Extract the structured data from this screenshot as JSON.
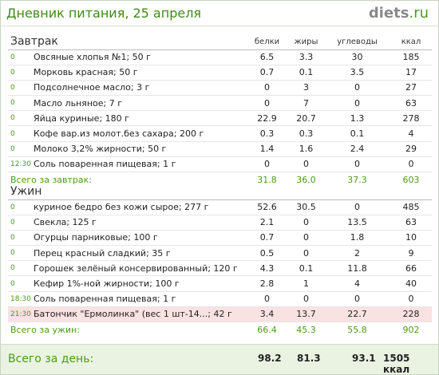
{
  "header": {
    "title": "Дневник питания, 25 апреля",
    "logo_main": "diets",
    "logo_tld": ".ru"
  },
  "columns": {
    "protein": "белки",
    "fat": "жиры",
    "carbs": "углеводы",
    "kcal": "ккал"
  },
  "breakfast": {
    "title": "Завтрак",
    "rows": [
      {
        "time": "0",
        "name": "Овсяные хлопья №1; 50 г",
        "protein": "6.5",
        "fat": "3.3",
        "carbs": "30",
        "kcal": "185"
      },
      {
        "time": "0",
        "name": "Морковь красная; 50 г",
        "protein": "0.7",
        "fat": "0.1",
        "carbs": "3.5",
        "kcal": "17"
      },
      {
        "time": "0",
        "name": "Подсолнечное масло; 3 г",
        "protein": "0",
        "fat": "3",
        "carbs": "0",
        "kcal": "27"
      },
      {
        "time": "0",
        "name": "Масло льняное; 7 г",
        "protein": "0",
        "fat": "7",
        "carbs": "0",
        "kcal": "63"
      },
      {
        "time": "0",
        "name": "Яйца куриные; 180 г",
        "protein": "22.9",
        "fat": "20.7",
        "carbs": "1.3",
        "kcal": "278"
      },
      {
        "time": "0",
        "name": "Кофе вар.из молот.без сахара; 200 г",
        "protein": "0.3",
        "fat": "0.3",
        "carbs": "0.1",
        "kcal": "4"
      },
      {
        "time": "0",
        "name": "Молоко 3,2% жирности; 50 г",
        "protein": "1.4",
        "fat": "1.6",
        "carbs": "2.4",
        "kcal": "29"
      },
      {
        "time": "12:30",
        "name": "Соль поваренная пищевая; 1 г",
        "protein": "0",
        "fat": "0",
        "carbs": "0",
        "kcal": "0"
      }
    ],
    "total": {
      "label": "Всего за завтрак:",
      "protein": "31.8",
      "fat": "36.0",
      "carbs": "37.3",
      "kcal": "603"
    }
  },
  "dinner": {
    "title": "Ужин",
    "rows": [
      {
        "time": "0",
        "name": "куриное бедро без кожи сырое; 277 г",
        "protein": "52.6",
        "fat": "30.5",
        "carbs": "0",
        "kcal": "485"
      },
      {
        "time": "0",
        "name": "Свекла; 125 г",
        "protein": "2.1",
        "fat": "0",
        "carbs": "13.5",
        "kcal": "63"
      },
      {
        "time": "0",
        "name": "Огурцы парниковые; 100 г",
        "protein": "0.7",
        "fat": "0",
        "carbs": "1.8",
        "kcal": "10"
      },
      {
        "time": "0",
        "name": "Перец красный сладкий; 35 г",
        "protein": "0.5",
        "fat": "0",
        "carbs": "2",
        "kcal": "9"
      },
      {
        "time": "0",
        "name": "Горошек зелёный консервированный; 120 г",
        "protein": "4.3",
        "fat": "0.1",
        "carbs": "11.8",
        "kcal": "66"
      },
      {
        "time": "0",
        "name": "Кефир 1%-ной жирности; 100 г",
        "protein": "2.8",
        "fat": "1",
        "carbs": "4",
        "kcal": "40"
      },
      {
        "time": "18:30",
        "name": "Соль поваренная пищевая; 1 г",
        "protein": "0",
        "fat": "0",
        "carbs": "0",
        "kcal": "0"
      },
      {
        "time": "21:30",
        "name": "Батончик \"Ермолинка\" (вес 1 шт-14...; 42 г",
        "protein": "3.4",
        "fat": "13.7",
        "carbs": "22.7",
        "kcal": "228",
        "highlight": true
      }
    ],
    "total": {
      "label": "Всего за ужин:",
      "protein": "66.4",
      "fat": "45.3",
      "carbs": "55.8",
      "kcal": "902"
    }
  },
  "day_total": {
    "label": "Всего за день:",
    "protein": "98.2",
    "fat": "81.3",
    "carbs": "93.1",
    "kcal": "1505 ккал"
  },
  "colors": {
    "accent_green": "#4b9a18",
    "highlight_row": "#f9e2e2",
    "footer_bg": "#eaf3e2"
  }
}
